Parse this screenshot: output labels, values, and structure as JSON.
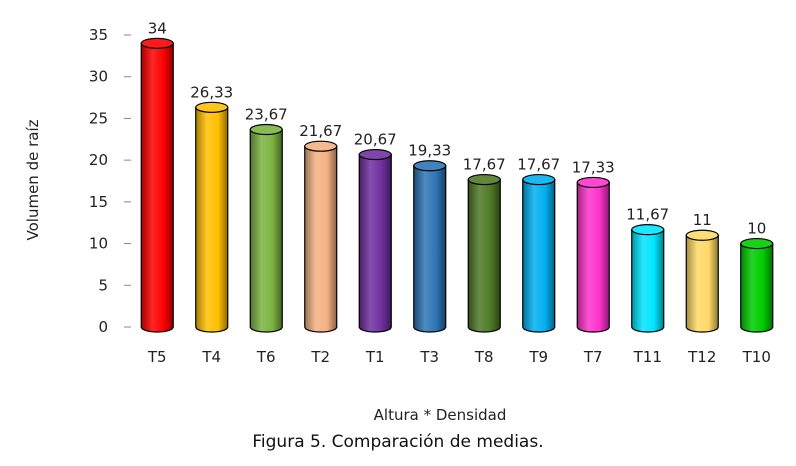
{
  "chart_data": {
    "type": "bar",
    "style": "3d-cylinder",
    "categories": [
      "T5",
      "T4",
      "T6",
      "T2",
      "T1",
      "T3",
      "T8",
      "T9",
      "T7",
      "T11",
      "T12",
      "T10"
    ],
    "values": [
      34,
      26.33,
      23.67,
      21.67,
      20.67,
      19.33,
      17.67,
      17.67,
      17.33,
      11.67,
      11,
      10
    ],
    "value_labels": [
      "34",
      "26,33",
      "23,67",
      "21,67",
      "20,67",
      "19,33",
      "17,67",
      "17,67",
      "17,33",
      "11,67",
      "11",
      "10"
    ],
    "colors": [
      "#ff0000",
      "#ffc000",
      "#7cb342",
      "#f4b183",
      "#7030a0",
      "#2e75b6",
      "#4e7a26",
      "#00b0f0",
      "#ff33cc",
      "#00e5ff",
      "#ffd966",
      "#00cc00"
    ],
    "xlabel": "Altura * Densidad",
    "ylabel": "Volumen de raíz",
    "ylim": [
      0,
      35
    ],
    "yticks": [
      0,
      5,
      10,
      15,
      20,
      25,
      30,
      35
    ],
    "grid": false,
    "legend": "none"
  },
  "caption": "Figura 5. Comparación de medias."
}
